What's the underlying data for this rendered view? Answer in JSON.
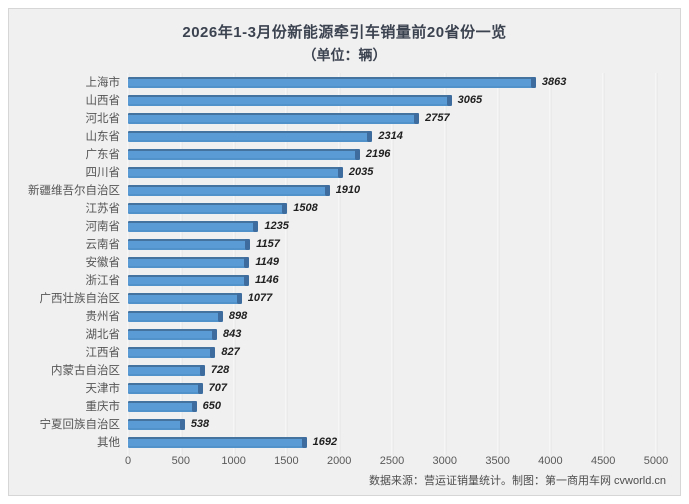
{
  "title": {
    "line1": "2026年1-3月份新能源牵引车销量前20省份一览",
    "line2": "（单位：辆）"
  },
  "footer": "数据来源：营运证销量统计。制图：第一商用车网 cvworld.cn",
  "colors": {
    "bar_body": "#5b9bd5",
    "bar_top_edge": "#44739f",
    "bar_cap": "#3e6c9e",
    "panel_bg": "#f0f0f0",
    "gridline": "#fdfdfd",
    "label_text": "#555555",
    "value_text": "#1f1f1f",
    "title_text": "#3c4350"
  },
  "chart_data": {
    "type": "bar",
    "orientation": "horizontal",
    "title": "2026年1-3月份新能源牵引车销量前20省份一览（单位：辆）",
    "categories": [
      "上海市",
      "山西省",
      "河北省",
      "山东省",
      "广东省",
      "四川省",
      "新疆维吾尔自治区",
      "江苏省",
      "河南省",
      "云南省",
      "安徽省",
      "浙江省",
      "广西壮族自治区",
      "贵州省",
      "湖北省",
      "江西省",
      "内蒙古自治区",
      "天津市",
      "重庆市",
      "宁夏回族自治区",
      "其他"
    ],
    "values": [
      3863,
      3065,
      2757,
      2314,
      2196,
      2035,
      1910,
      1508,
      1235,
      1157,
      1149,
      1146,
      1077,
      898,
      843,
      827,
      728,
      707,
      650,
      538,
      1692
    ],
    "xlabel": "",
    "ylabel": "",
    "xlim": [
      0,
      5000
    ],
    "xticks": [
      0,
      500,
      1000,
      1500,
      2000,
      2500,
      3000,
      3500,
      4000,
      4500,
      5000
    ],
    "grid": true,
    "value_labels": true,
    "legend": false
  }
}
